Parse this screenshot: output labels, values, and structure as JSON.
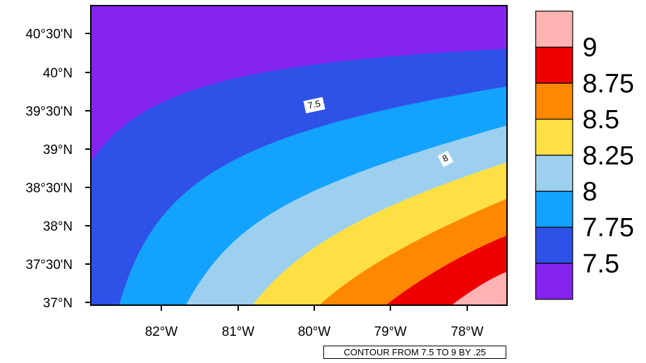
{
  "map": {
    "lat_labels": [
      "40°30'N",
      "40°N",
      "39°30'N",
      "39°N",
      "38°30'N",
      "38°N",
      "37°30'N",
      "37°N"
    ],
    "lon_labels": [
      "82°W",
      "81°W",
      "80°W",
      "79°W",
      "78°W"
    ],
    "contour_labels": [
      "7.5",
      "8"
    ],
    "legend": {
      "labels": [
        "9",
        "8.75",
        "8.5",
        "8.25",
        "8",
        "7.75",
        "7.5"
      ],
      "colors": [
        "#FFB3B3",
        "#EE0000",
        "#FF8800",
        "#FFE044",
        "#9DD0EE",
        "#13A3FF",
        "#2E51E8",
        "#8422EE"
      ]
    },
    "footer_note": "CONTOUR FROM 7.5 TO 9 BY .25"
  }
}
